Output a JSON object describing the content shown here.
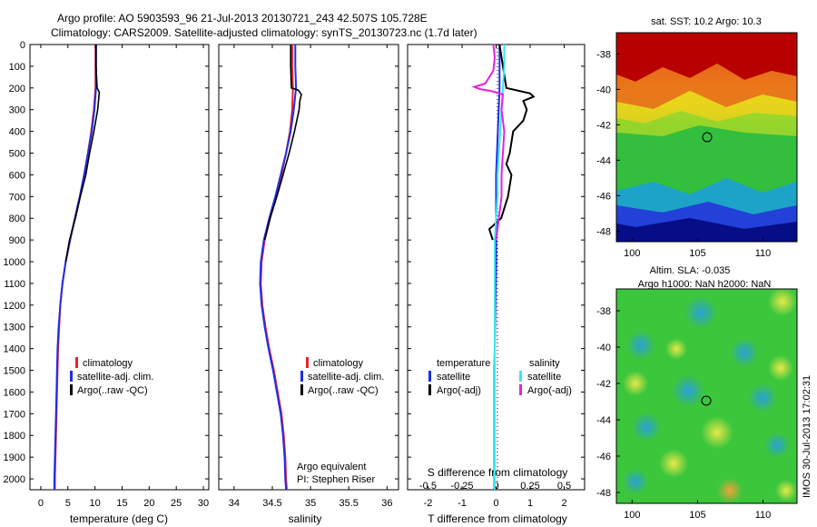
{
  "title_line1": "Argo profile: AO 5903593_96 21-Jul-2013 20130721_243 42.507S 105.728E",
  "title_line2": "Climatology: CARS2009. Satellite-adjusted climatology: synTS_20130723.nc (1.7d later)",
  "footer_stamp": "IMOS 30-Jul-2013 17:02:31",
  "colors": {
    "climatology": "#e8222b",
    "satellite": "#1f2ee6",
    "argo": "#000000",
    "salinity_sat": "#38e6f2",
    "salinity_argo": "#e620e0"
  },
  "chart_data": [
    {
      "id": "temperature",
      "type": "line",
      "xlabel": "temperature (deg C)",
      "xlim": [
        -2,
        31
      ],
      "ylim": [
        2050,
        0
      ],
      "xticks": [
        "0",
        "5",
        "10",
        "15",
        "20",
        "25",
        "30"
      ],
      "yticks": [
        "0",
        "100",
        "200",
        "300",
        "400",
        "500",
        "600",
        "700",
        "800",
        "900",
        "1000",
        "1100",
        "1200",
        "1300",
        "1400",
        "1500",
        "1600",
        "1700",
        "1800",
        "1900",
        "2000"
      ],
      "legend": [
        "climatology",
        "satellite-adj. clim.",
        "Argo(..raw -QC)"
      ],
      "series": [
        {
          "name": "climatology",
          "depth": [
            0,
            100,
            200,
            300,
            400,
            500,
            600,
            700,
            800,
            900,
            1000,
            1100,
            1200,
            1300,
            1400,
            1500,
            1600,
            1700,
            1800,
            1900,
            2000,
            2050
          ],
          "values": [
            10.1,
            10.1,
            10.1,
            9.8,
            9.3,
            8.7,
            8.0,
            7.2,
            6.3,
            5.4,
            4.6,
            4.0,
            3.6,
            3.4,
            3.2,
            3.1,
            3.0,
            2.9,
            2.8,
            2.7,
            2.6,
            2.6
          ]
        },
        {
          "name": "satellite-adj. clim.",
          "depth": [
            0,
            100,
            200,
            300,
            400,
            500,
            600,
            700,
            800,
            900,
            1000,
            1100,
            1200,
            1300,
            1400,
            1500,
            1600,
            1700,
            1800,
            1900,
            2000,
            2050
          ],
          "values": [
            10.2,
            10.2,
            10.2,
            9.9,
            9.4,
            8.7,
            8.0,
            7.2,
            6.3,
            5.4,
            4.6,
            4.0,
            3.6,
            3.3,
            3.1,
            3.0,
            2.9,
            2.8,
            2.7,
            2.6,
            2.5,
            2.5
          ]
        },
        {
          "name": "Argo(..raw -QC)",
          "depth": [
            0,
            100,
            200,
            220,
            300,
            400,
            500,
            600,
            700,
            800,
            900,
            1000
          ],
          "values": [
            10.2,
            10.2,
            10.4,
            10.8,
            10.5,
            9.8,
            9.0,
            8.3,
            7.3,
            6.4,
            5.3,
            4.6
          ]
        }
      ]
    },
    {
      "id": "salinity",
      "type": "line",
      "xlabel": "salinity",
      "xlim": [
        33.8,
        36.15
      ],
      "ylim": [
        2050,
        0
      ],
      "xticks": [
        "34",
        "34.5",
        "35",
        "35.5",
        "36"
      ],
      "legend": [
        "climatology",
        "satellite-adj. clim.",
        "Argo(..raw -QC)"
      ],
      "annotation": [
        "Argo equivalent",
        "PI: Stephen Riser"
      ],
      "series": [
        {
          "name": "climatology",
          "depth": [
            0,
            100,
            200,
            300,
            400,
            500,
            600,
            700,
            800,
            900,
            1000,
            1100,
            1200,
            1300,
            1400,
            1500,
            1600,
            1700,
            1800,
            1900,
            2000,
            2050
          ],
          "values": [
            34.76,
            34.76,
            34.77,
            34.76,
            34.73,
            34.68,
            34.62,
            34.55,
            34.47,
            34.4,
            34.36,
            34.35,
            34.37,
            34.41,
            34.46,
            34.52,
            34.57,
            34.62,
            34.65,
            34.67,
            34.68,
            34.69
          ]
        },
        {
          "name": "satellite-adj. clim.",
          "depth": [
            0,
            100,
            200,
            300,
            400,
            500,
            600,
            700,
            800,
            900,
            1000,
            1100,
            1200,
            1300,
            1400,
            1500,
            1600,
            1700,
            1800,
            1900,
            2000,
            2050
          ],
          "values": [
            34.8,
            34.8,
            34.81,
            34.78,
            34.74,
            34.68,
            34.61,
            34.54,
            34.46,
            34.39,
            34.35,
            34.34,
            34.36,
            34.4,
            34.45,
            34.51,
            34.56,
            34.61,
            34.64,
            34.66,
            34.67,
            34.68
          ]
        },
        {
          "name": "Argo(..raw -QC)",
          "depth": [
            0,
            100,
            200,
            210,
            230,
            260,
            300,
            400,
            500,
            600,
            700,
            800,
            900
          ],
          "values": [
            34.74,
            34.74,
            34.75,
            34.84,
            34.88,
            34.86,
            34.85,
            34.79,
            34.72,
            34.64,
            34.56,
            34.47,
            34.4
          ]
        }
      ]
    },
    {
      "id": "differences",
      "type": "line",
      "xlabel": "T difference from climatology",
      "xlabel2": "S difference from climatology",
      "xlim": [
        -2.6,
        2.6
      ],
      "ylim": [
        2050,
        0
      ],
      "xticks": [
        "-2",
        "-1",
        "0",
        "1",
        "2"
      ],
      "xticks2": [
        "-0.5",
        "-0.25",
        "0",
        "0.25",
        "0.5"
      ],
      "legend_temperature_title": "temperature",
      "legend_salinity_title": "salinity",
      "legend": [
        "satellite",
        "Argo(-adj)",
        "satellite",
        "Argo(-adj)"
      ],
      "series": [
        {
          "name": "temperature satellite",
          "depth": [
            0,
            200,
            400,
            600,
            800,
            1000,
            1500,
            2050
          ],
          "values": [
            0.1,
            0.1,
            0.05,
            0.0,
            0.0,
            0.0,
            -0.05,
            -0.05
          ]
        },
        {
          "name": "temperature Argo(-adj)",
          "depth": [
            0,
            100,
            200,
            225,
            240,
            260,
            300,
            350,
            400,
            500,
            550,
            600,
            700,
            800,
            850,
            900
          ],
          "values": [
            0.1,
            0.2,
            0.3,
            1.0,
            1.1,
            0.8,
            0.9,
            0.8,
            0.5,
            0.4,
            0.3,
            0.45,
            0.35,
            0.15,
            -0.2,
            -0.1
          ]
        },
        {
          "name": "salinity satellite",
          "depth": [
            0,
            100,
            200,
            300,
            400,
            500,
            600,
            700,
            800,
            900,
            1000,
            1200,
            1500,
            2050
          ],
          "values": [
            0.06,
            0.06,
            0.05,
            0.04,
            0.03,
            0.02,
            0.01,
            0.01,
            0.0,
            -0.01,
            -0.01,
            -0.01,
            -0.01,
            -0.01
          ]
        },
        {
          "name": "salinity Argo(-adj)",
          "depth": [
            0,
            60,
            120,
            180,
            195,
            205,
            215,
            230,
            300,
            400,
            500,
            600,
            700,
            800,
            900
          ],
          "values": [
            -0.02,
            -0.01,
            -0.02,
            -0.08,
            -0.16,
            -0.12,
            -0.03,
            0.05,
            0.04,
            0.06,
            0.05,
            0.04,
            0.04,
            0.02,
            0.0
          ]
        }
      ]
    }
  ],
  "maps": [
    {
      "id": "sst",
      "title": "sat. SST: 10.2 Argo: 10.3",
      "lat_ticks": [
        "-38",
        "-40",
        "-42",
        "-44",
        "-46",
        "-48"
      ],
      "lon_ticks": [
        "100",
        "105",
        "110"
      ],
      "float_lon": 105.7,
      "float_lat": -42.5
    },
    {
      "id": "sla",
      "title_line1": "Altim. SLA: -0.035",
      "title_line2": "Argo h1000: NaN h2000: NaN",
      "lat_ticks": [
        "-38",
        "-40",
        "-42",
        "-44",
        "-46",
        "-48"
      ],
      "lon_ticks": [
        "100",
        "105",
        "110"
      ],
      "float_lon": 105.7,
      "float_lat": -42.5
    }
  ]
}
